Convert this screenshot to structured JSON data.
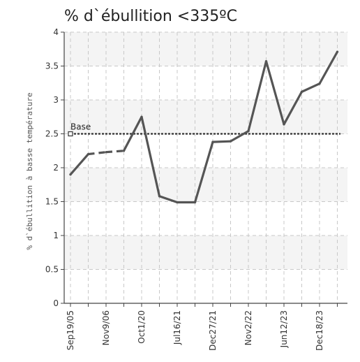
{
  "chart_data": {
    "type": "line",
    "title": "% d`ébullition <335ºC",
    "ylabel": "% d`ébullition à basse température",
    "xlabel": "",
    "ylim": [
      0,
      4
    ],
    "yticks": [
      0,
      0.5,
      1,
      1.5,
      2,
      2.5,
      3,
      3.5,
      4
    ],
    "ytick_labels": [
      "0",
      "0.5",
      "1",
      "1.5",
      "2",
      "2.5",
      "3",
      "3.5",
      "4"
    ],
    "x_categories": [
      "Sep19/05",
      "",
      "Nov9/06",
      "",
      "Oct1/20",
      "",
      "Jul16/21",
      "",
      "Dec27/21",
      "",
      "Nov2/22",
      "",
      "Jun12/23",
      "",
      "Dec18/23",
      ""
    ],
    "grid": true,
    "series": [
      {
        "name": "",
        "color": "#555555",
        "values": [
          1.9,
          2.2,
          2.23,
          2.25,
          2.75,
          1.58,
          1.49,
          1.49,
          2.38,
          2.39,
          2.54,
          3.57,
          2.64,
          3.12,
          3.24,
          3.71
        ],
        "dashed_segments": [
          [
            1,
            3
          ]
        ]
      }
    ],
    "reference_line": {
      "label": "Base",
      "value": 2.5,
      "color": "#333333"
    }
  }
}
